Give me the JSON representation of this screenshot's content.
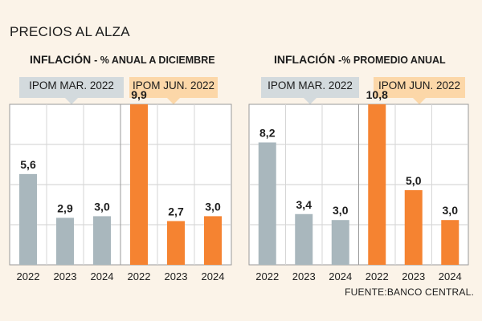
{
  "page_title": "PRECIOS AL ALZA",
  "source": "FUENTE:BANCO CENTRAL.",
  "colors": {
    "background": "#fbf3e8",
    "gray_series": "#a9b7bd",
    "orange_series": "#f58331",
    "tag_gray": "#d3dadd",
    "tag_orange": "#fcd7a8"
  },
  "chart_data": [
    {
      "type": "bar",
      "title": "INFLACIÓN",
      "subtitle": "- % ANUAL A DICIEMBRE",
      "ylim": [
        0,
        10
      ],
      "series": [
        {
          "name": "IPOM MAR. 2022",
          "categories": [
            "2022",
            "2023",
            "2024"
          ],
          "values": [
            5.6,
            2.9,
            3.0
          ],
          "labels": [
            "5,6",
            "2,9",
            "3,0"
          ]
        },
        {
          "name": "IPOM JUN. 2022",
          "categories": [
            "2022",
            "2023",
            "2024"
          ],
          "values": [
            9.9,
            2.7,
            3.0
          ],
          "labels": [
            "9,9",
            "2,7",
            "3,0"
          ]
        }
      ]
    },
    {
      "type": "bar",
      "title": "INFLACIÓN",
      "subtitle": "-% PROMEDIO ANUAL",
      "ylim": [
        0,
        11
      ],
      "series": [
        {
          "name": "IPOM MAR. 2022",
          "categories": [
            "2022",
            "2023",
            "2024"
          ],
          "values": [
            8.2,
            3.4,
            3.0
          ],
          "labels": [
            "8,2",
            "3,4",
            "3,0"
          ]
        },
        {
          "name": "IPOM JUN. 2022",
          "categories": [
            "2022",
            "2023",
            "2024"
          ],
          "values": [
            10.8,
            5.0,
            3.0
          ],
          "labels": [
            "10,8",
            "5,0",
            "3,0"
          ]
        }
      ]
    }
  ]
}
